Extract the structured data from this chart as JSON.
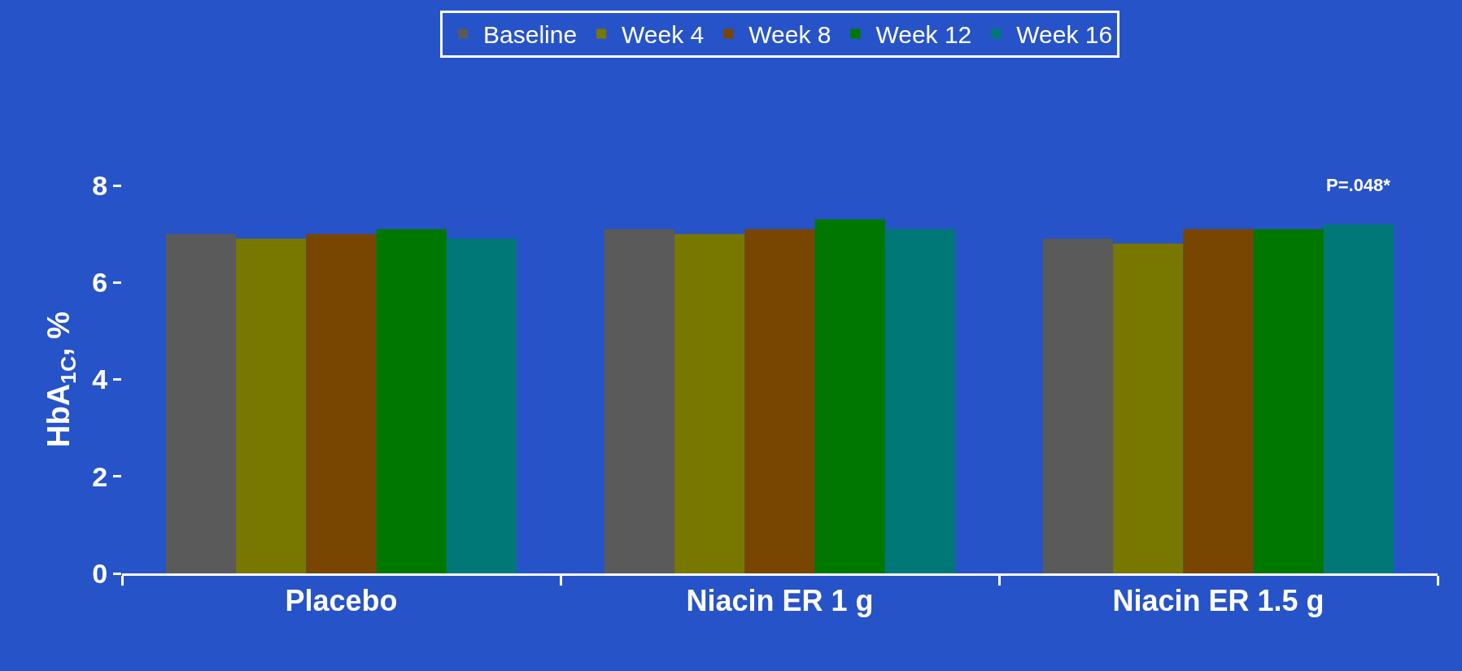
{
  "chart_data": {
    "type": "bar",
    "ylabel": "HbA$_{1C}$, %",
    "categories": [
      "Placebo",
      "Niacin ER 1 g",
      "Niacin ER 1.5 g"
    ],
    "series": [
      {
        "name": "Baseline",
        "color": "#5a5a5a",
        "values": [
          7.0,
          7.1,
          6.9
        ]
      },
      {
        "name": "Week 4",
        "color": "#787800",
        "values": [
          6.9,
          7.0,
          6.8
        ]
      },
      {
        "name": "Week 8",
        "color": "#784600",
        "values": [
          7.0,
          7.1,
          7.1
        ]
      },
      {
        "name": "Week 12",
        "color": "#007800",
        "values": [
          7.1,
          7.3,
          7.1
        ]
      },
      {
        "name": "Week 16",
        "color": "#007878",
        "values": [
          6.9,
          7.1,
          7.2
        ]
      }
    ],
    "ylim": [
      0,
      8
    ],
    "yticks": [
      0,
      2,
      4,
      6,
      8
    ],
    "grid": false,
    "legend": "top",
    "annotations": [
      "P=.048*"
    ]
  }
}
